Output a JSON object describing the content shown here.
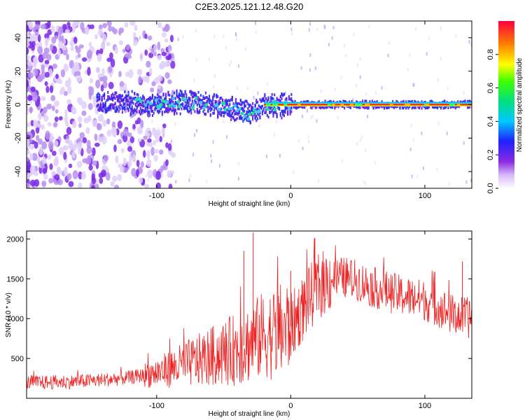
{
  "title": "C2E3.2025.121.12.48.G20",
  "colors": {
    "signal": "#ff0000",
    "snr_line": "#ee2222",
    "background": "#ffffff",
    "axis": "#000000"
  },
  "chart_data": [
    {
      "type": "heatmap",
      "title": "C2E3.2025.121.12.48.G20",
      "xlabel": "Height of straight line (km)",
      "ylabel": "Frequency (Hz)",
      "xlim": [
        -197,
        135
      ],
      "ylim": [
        -50,
        50
      ],
      "x_ticks": [
        -100,
        0,
        100
      ],
      "y_ticks": [
        -40,
        -20,
        0,
        20,
        40
      ],
      "grid": false,
      "colorbar": {
        "label": "Normalized spectral amplitude",
        "range": [
          0.0,
          1.0
        ],
        "ticks": [
          0.0,
          0.2,
          0.4,
          0.6,
          0.8
        ],
        "tick_labels": [
          "0.0",
          "0.2",
          "0.4",
          "0.6",
          "0.8"
        ],
        "colormap": "rainbow (white-purple-blue-cyan-green-yellow-red)"
      },
      "series": [
        {
          "frequency_ridge_hz": [
            [
              -140,
              2
            ],
            [
              -120,
              1
            ],
            [
              -100,
              0
            ],
            [
              -80,
              2
            ],
            [
              -60,
              0
            ],
            [
              -40,
              -3
            ],
            [
              -30,
              -5
            ],
            [
              -20,
              -1
            ],
            [
              0,
              0
            ],
            [
              40,
              0
            ],
            [
              100,
              0
            ],
            [
              135,
              0
            ]
          ]
        }
      ]
    },
    {
      "type": "line",
      "xlabel": "Height of straight line (km)",
      "ylabel": "SNR (10 * v/v)",
      "xlim": [
        -197,
        135
      ],
      "ylim": [
        0,
        2100
      ],
      "x_ticks": [
        -100,
        0,
        100
      ],
      "y_ticks": [
        500,
        1000,
        1500,
        2000
      ],
      "grid": false,
      "series": [
        {
          "x": [
            -197,
            -180,
            -160,
            -140,
            -120,
            -100,
            -80,
            -60,
            -40,
            -30,
            -20,
            -10,
            0,
            10,
            20,
            30,
            40,
            50,
            60,
            80,
            100,
            110,
            120,
            135
          ],
          "y": [
            200,
            200,
            210,
            230,
            260,
            320,
            420,
            520,
            620,
            700,
            800,
            820,
            900,
            1150,
            1400,
            1500,
            1520,
            1480,
            1400,
            1300,
            1230,
            1150,
            1050,
            1000
          ],
          "peaks": [
            [
              -28,
              2080
            ],
            [
              18,
              2010
            ],
            [
              0,
              1600
            ],
            [
              -35,
              1850
            ],
            [
              128,
              1720
            ]
          ]
        }
      ]
    }
  ]
}
